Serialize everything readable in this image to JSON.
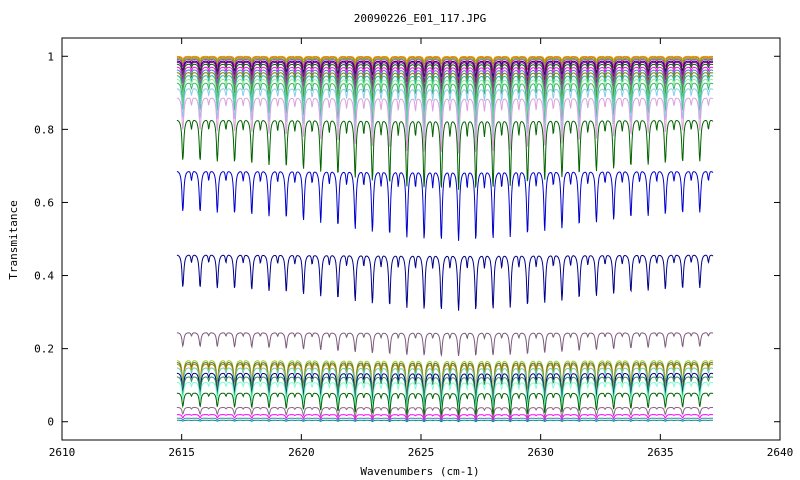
{
  "chart_data": {
    "type": "line",
    "title": "20090226_E01_117.JPG",
    "xlabel": "Wavenumbers (cm-1)",
    "ylabel": "Transmitance",
    "xlim": [
      2610,
      2640
    ],
    "ylim": [
      -0.05,
      1.05
    ],
    "x_ticks": [
      2610,
      2615,
      2620,
      2625,
      2630,
      2635,
      2640
    ],
    "x_tick_labels": [
      "2610",
      "2615",
      "2620",
      "2625",
      "2630",
      "2635",
      "2640"
    ],
    "y_ticks": [
      0,
      0.2,
      0.4,
      0.6,
      0.8,
      1
    ],
    "y_tick_labels": [
      "0",
      "0.2",
      "0.4",
      "0.6",
      "0.8",
      "1"
    ],
    "grid": false,
    "legend": "none",
    "x_range_data": [
      2614.8,
      2637.2
    ],
    "line_period_cm": 0.72,
    "series": [
      {
        "color": "#ff8c00",
        "baseline": 1.0,
        "depth": 0.01
      },
      {
        "color": "#b8860b",
        "baseline": 0.998,
        "depth": 0.015
      },
      {
        "color": "#32cd32",
        "baseline": 0.995,
        "depth": 0.02
      },
      {
        "color": "#ff1493",
        "baseline": 0.992,
        "depth": 0.025
      },
      {
        "color": "#000080",
        "baseline": 0.988,
        "depth": 0.035
      },
      {
        "color": "#8b008b",
        "baseline": 0.985,
        "depth": 0.045
      },
      {
        "color": "#006400",
        "baseline": 0.98,
        "depth": 0.055
      },
      {
        "color": "#ff00ff",
        "baseline": 0.972,
        "depth": 0.06
      },
      {
        "color": "#4682b4",
        "baseline": 0.965,
        "depth": 0.07
      },
      {
        "color": "#808000",
        "baseline": 0.958,
        "depth": 0.075
      },
      {
        "color": "#20b2aa",
        "baseline": 0.95,
        "depth": 0.085
      },
      {
        "color": "#90ee90",
        "baseline": 0.94,
        "depth": 0.09
      },
      {
        "color": "#3cb371",
        "baseline": 0.93,
        "depth": 0.1
      },
      {
        "color": "#87ceeb",
        "baseline": 0.915,
        "depth": 0.11
      },
      {
        "color": "#dda0dd",
        "baseline": 0.89,
        "depth": 0.12
      },
      {
        "color": "#006400",
        "baseline": 0.83,
        "depth": 0.15
      },
      {
        "color": "#0000cd",
        "baseline": 0.69,
        "depth": 0.15
      },
      {
        "color": "#00008b",
        "baseline": 0.46,
        "depth": 0.12
      },
      {
        "color": "#7b5b7b",
        "baseline": 0.245,
        "depth": 0.05
      },
      {
        "color": "#9acd32",
        "baseline": 0.17,
        "depth": 0.08
      },
      {
        "color": "#556b2f",
        "baseline": 0.165,
        "depth": 0.085
      },
      {
        "color": "#b8860b",
        "baseline": 0.16,
        "depth": 0.085
      },
      {
        "color": "#66cdaa",
        "baseline": 0.15,
        "depth": 0.08
      },
      {
        "color": "#000080",
        "baseline": 0.135,
        "depth": 0.07
      },
      {
        "color": "#2e8b57",
        "baseline": 0.125,
        "depth": 0.07
      },
      {
        "color": "#7fffd4",
        "baseline": 0.11,
        "depth": 0.065
      },
      {
        "color": "#006400",
        "baseline": 0.08,
        "depth": 0.05
      },
      {
        "color": "#8b668b",
        "baseline": 0.04,
        "depth": 0.025
      },
      {
        "color": "#ff00ff",
        "baseline": 0.02,
        "depth": 0.012
      },
      {
        "color": "#4682b4",
        "baseline": 0.01,
        "depth": 0.006
      },
      {
        "color": "#008b8b",
        "baseline": 0.004,
        "depth": 0.003
      }
    ]
  }
}
